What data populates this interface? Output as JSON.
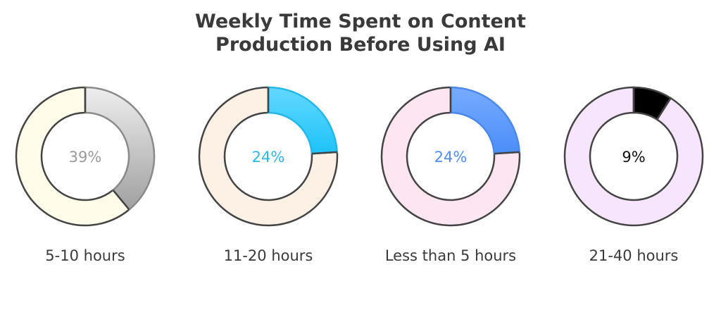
{
  "chart_data": {
    "type": "pie",
    "title_lines": [
      "Weekly Time Spent on Content",
      "Production Before Using AI"
    ],
    "charts": [
      {
        "label": "5-10 hours",
        "value": 39,
        "value_label": "39%",
        "highlight_color": [
          "#eeeeee",
          "#a0a0a0"
        ],
        "highlight_stroke": "#8a8a8a",
        "rest_color": "#fffce9",
        "text_color": "#9a9a9a"
      },
      {
        "label": "11-20 hours",
        "value": 24,
        "value_label": "24%",
        "highlight_color": [
          "#62d8ff",
          "#1ec3f8"
        ],
        "highlight_stroke": "#22b7ea",
        "rest_color": "#fdf1e6",
        "text_color": "#2ab8ea"
      },
      {
        "label": "Less than 5 hours",
        "value": 24,
        "value_label": "24%",
        "highlight_color": [
          "#78abff",
          "#4a8ef8"
        ],
        "highlight_stroke": "#4a88ee",
        "rest_color": "#fde6f1",
        "text_color": "#4f8df2"
      },
      {
        "label": "21-40 hours",
        "value": 9,
        "value_label": "9%",
        "highlight_color": [
          "#000000",
          "#000000"
        ],
        "highlight_stroke": "#444444",
        "rest_color": "#f7e5fd",
        "text_color": "#111111"
      }
    ]
  }
}
